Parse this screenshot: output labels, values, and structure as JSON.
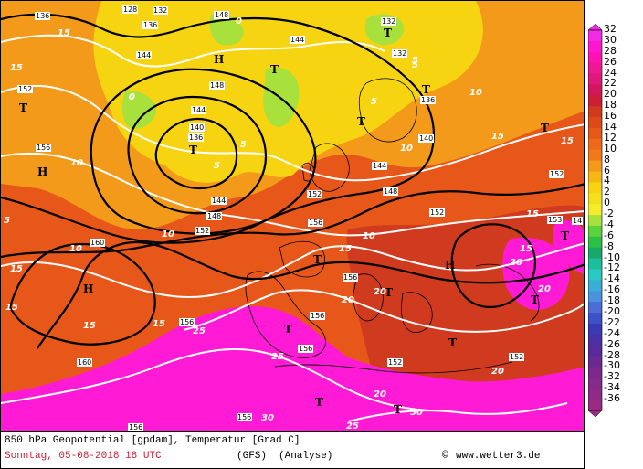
{
  "colors": {
    "ocean_warm": "#e8571a",
    "land_hot": "#d8308a",
    "magenta": "#ff1ad6",
    "orange": "#f39a1a",
    "yellow": "#f6d411",
    "green_light": "#a8e03c",
    "isotherm": "#ffffff",
    "isohypse": "#000000"
  },
  "map": {
    "pressure_centers": [
      {
        "label": "H"
      },
      {
        "label": "H"
      },
      {
        "label": "H"
      },
      {
        "label": "H"
      },
      {
        "label": "T"
      },
      {
        "label": "T"
      },
      {
        "label": "T"
      },
      {
        "label": "T"
      },
      {
        "label": "T"
      },
      {
        "label": "T"
      },
      {
        "label": "T"
      },
      {
        "label": "T"
      },
      {
        "label": "T"
      },
      {
        "label": "T"
      },
      {
        "label": "T"
      },
      {
        "label": "T"
      },
      {
        "label": "T"
      },
      {
        "label": "T"
      },
      {
        "label": "T"
      }
    ],
    "isotherm_labels": [
      "15",
      "15",
      "10",
      "10",
      "5",
      "5",
      "0",
      "0",
      "5",
      "5",
      "10",
      "15",
      "15",
      "10",
      "15",
      "10",
      "10",
      "15",
      "15",
      "15",
      "15",
      "20",
      "20",
      "15",
      "20",
      "20",
      "20",
      "25",
      "30",
      "25",
      "30",
      "20",
      "15",
      "25",
      "5",
      "5"
    ],
    "isohypse_labels": [
      "136",
      "128",
      "132",
      "136",
      "148",
      "144",
      "152",
      "156",
      "144",
      "140",
      "136",
      "148",
      "144",
      "132",
      "132",
      "136",
      "140",
      "152",
      "148",
      "156",
      "152",
      "152",
      "160",
      "160",
      "156",
      "156",
      "156",
      "156",
      "152",
      "156",
      "148",
      "144",
      "152",
      "153",
      "14",
      "152",
      "144",
      "156"
    ]
  },
  "legend": {
    "values": [
      "32",
      "30",
      "28",
      "26",
      "24",
      "22",
      "20",
      "18",
      "16",
      "14",
      "12",
      "10",
      "8",
      "6",
      "4",
      "2",
      "0",
      "-2",
      "-4",
      "-6",
      "-8",
      "-10",
      "-12",
      "-14",
      "-16",
      "-18",
      "-20",
      "-22",
      "-24",
      "-26",
      "-28",
      "-30",
      "-32",
      "-34",
      "-36"
    ],
    "colors": [
      "#f02ae6",
      "#ff17d0",
      "#ff12b4",
      "#ee1794",
      "#e0187a",
      "#d4165c",
      "#cc1e36",
      "#d03a1f",
      "#dc4a1a",
      "#e8571a",
      "#ee6a1a",
      "#f07a1a",
      "#f39a1a",
      "#f6b616",
      "#f6d411",
      "#f4e01e",
      "#f2ec2a",
      "#a8e03c",
      "#5bd23c",
      "#2cc047",
      "#1aa86a",
      "#1bbf9c",
      "#2bc9c4",
      "#3aaed6",
      "#4a92e0",
      "#4a6ed6",
      "#3e52c8",
      "#3a3ab4",
      "#4a30a6",
      "#5a2a9a",
      "#6a2a92",
      "#7a2a8e",
      "#862a8a",
      "#902a86",
      "#9a2a82"
    ]
  },
  "footer": {
    "line1": "850 hPa Geopotential [gpdam], Temperatur [Grad C]",
    "date": "Sonntag, 05-08-2018  18 UTC",
    "model": "(GFS)",
    "run": "(Analyse)",
    "copyright": "www.wetter3.de",
    "date_color": "#cc1e36"
  }
}
